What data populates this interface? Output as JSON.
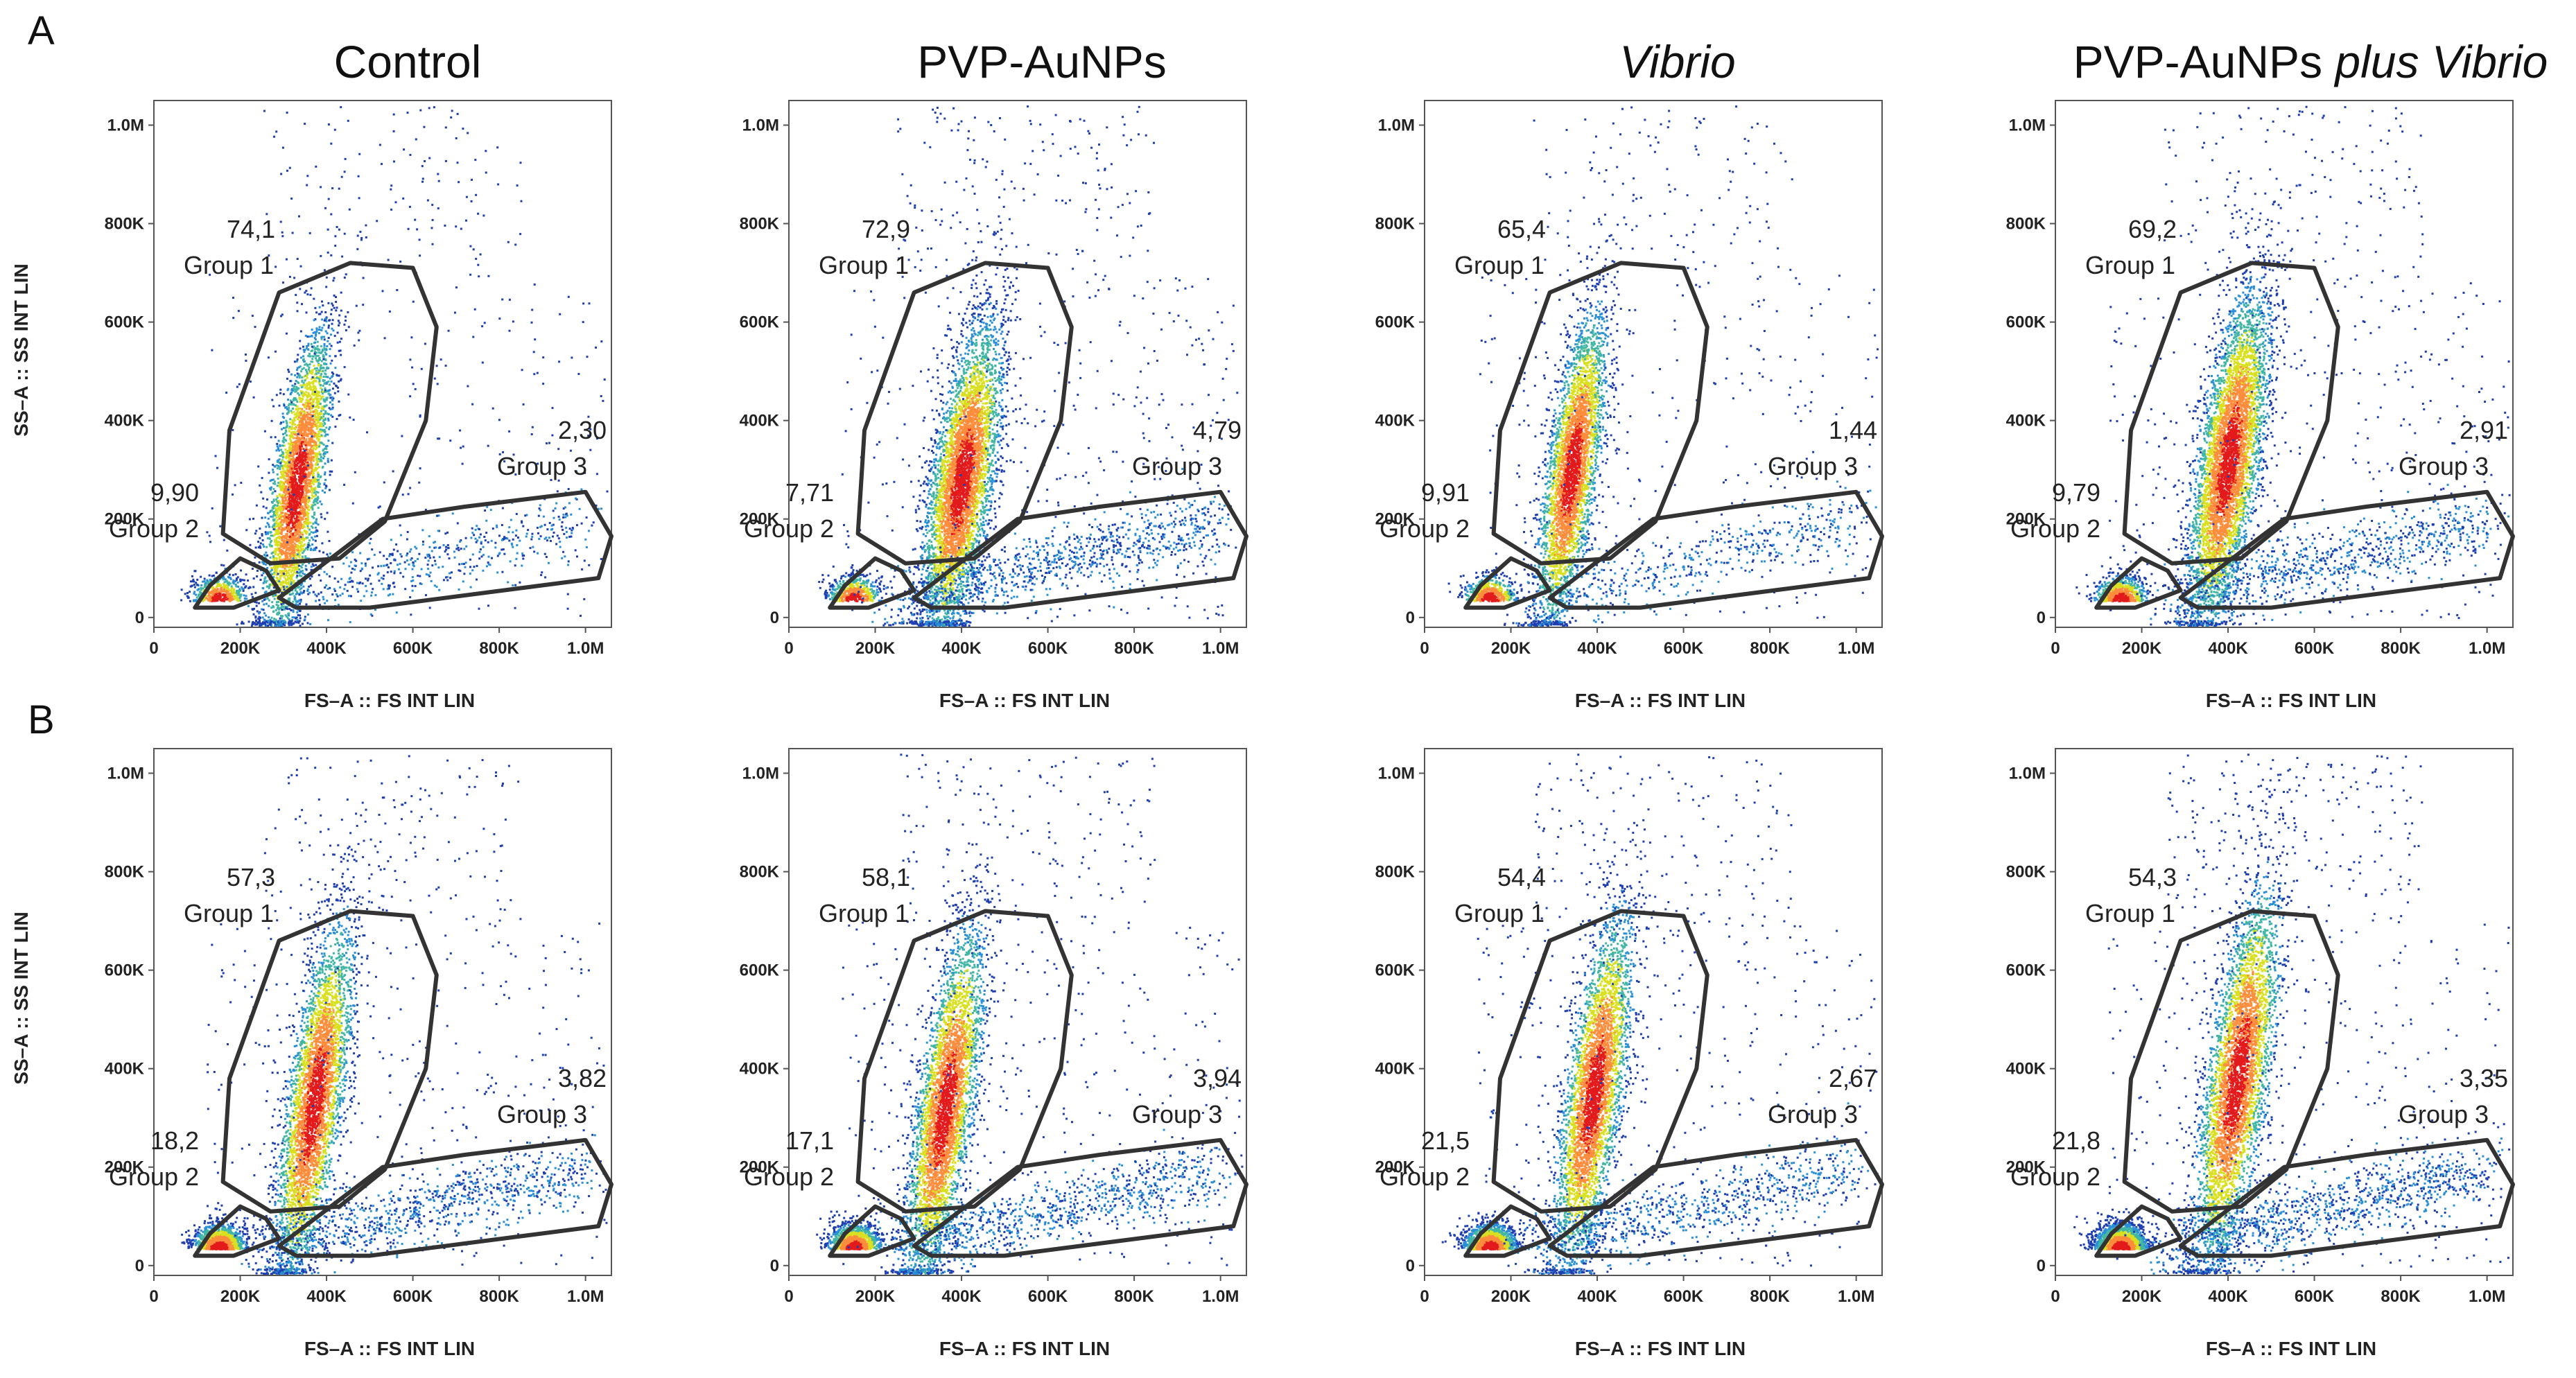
{
  "panel_labels": [
    "A",
    "B"
  ],
  "columns": [
    {
      "parts": [
        {
          "text": "Control",
          "italic": false
        }
      ]
    },
    {
      "parts": [
        {
          "text": "PVP-AuNPs",
          "italic": false
        }
      ]
    },
    {
      "parts": [
        {
          "text": "Vibrio",
          "italic": true
        }
      ]
    },
    {
      "parts": [
        {
          "text": "PVP-AuNPs ",
          "italic": false
        },
        {
          "text": "plus Vibrio",
          "italic": true
        }
      ]
    }
  ],
  "axes": {
    "xlabel": "FS–A :: FS INT LIN",
    "ylabel": "SS–A :: SS INT LIN",
    "x_ticks": [
      {
        "v": 0,
        "t": "0"
      },
      {
        "v": 200000,
        "t": "200K"
      },
      {
        "v": 400000,
        "t": "400K"
      },
      {
        "v": 600000,
        "t": "600K"
      },
      {
        "v": 800000,
        "t": "800K"
      },
      {
        "v": 1000000,
        "t": "1.0M"
      }
    ],
    "y_ticks": [
      {
        "v": 0,
        "t": "0"
      },
      {
        "v": 200000,
        "t": "200K"
      },
      {
        "v": 400000,
        "t": "400K"
      },
      {
        "v": 600000,
        "t": "600K"
      },
      {
        "v": 800000,
        "t": "800K"
      },
      {
        "v": 1000000,
        "t": "1.0M"
      }
    ],
    "xlim": [
      0,
      1060000
    ],
    "ylim": [
      -20000,
      1050000
    ]
  },
  "group_names": [
    "Group 1",
    "Group 2",
    "Group 3"
  ],
  "gates": {
    "group1": [
      [
        270000,
        110000
      ],
      [
        160000,
        170000
      ],
      [
        175000,
        380000
      ],
      [
        290000,
        660000
      ],
      [
        455000,
        720000
      ],
      [
        600000,
        710000
      ],
      [
        655000,
        590000
      ],
      [
        630000,
        400000
      ],
      [
        535000,
        195000
      ],
      [
        430000,
        120000
      ]
    ],
    "group2": [
      [
        95000,
        20000
      ],
      [
        130000,
        65000
      ],
      [
        200000,
        120000
      ],
      [
        260000,
        95000
      ],
      [
        290000,
        55000
      ],
      [
        185000,
        20000
      ]
    ],
    "group3": [
      [
        290000,
        40000
      ],
      [
        530000,
        200000
      ],
      [
        720000,
        225000
      ],
      [
        1000000,
        255000
      ],
      [
        1060000,
        165000
      ],
      [
        1030000,
        80000
      ],
      [
        500000,
        20000
      ],
      [
        330000,
        20000
      ]
    ]
  },
  "chart_data": [
    {
      "type": "scatter",
      "row": "A",
      "title": "Control",
      "xlabel": "FS–A :: FS INT LIN",
      "ylabel": "SS–A :: SS INT LIN",
      "xlim": [
        0,
        1060000
      ],
      "ylim": [
        0,
        1050000
      ],
      "gates": [
        {
          "name": "Group 1",
          "percent": "74,1"
        },
        {
          "name": "Group 2",
          "percent": "9,90"
        },
        {
          "name": "Group 3",
          "percent": "2,30"
        }
      ],
      "density": {
        "main_center": [
          330000,
          270000
        ],
        "main_spread": [
          90000,
          150000
        ],
        "upper_fraction": 0.74,
        "small_fraction": 0.1,
        "diag_fraction": 0.1,
        "n": 5200
      }
    },
    {
      "type": "scatter",
      "row": "A",
      "title": "PVP-AuNPs",
      "xlabel": "FS–A :: FS INT LIN",
      "ylabel": "SS–A :: SS INT LIN",
      "xlim": [
        0,
        1060000
      ],
      "ylim": [
        0,
        1050000
      ],
      "gates": [
        {
          "name": "Group 1",
          "percent": "72,9"
        },
        {
          "name": "Group 2",
          "percent": "7,71"
        },
        {
          "name": "Group 3",
          "percent": "4,79"
        }
      ],
      "density": {
        "main_center": [
          400000,
          280000
        ],
        "main_spread": [
          110000,
          150000
        ],
        "upper_fraction": 0.73,
        "small_fraction": 0.08,
        "diag_fraction": 0.14,
        "n": 7000
      }
    },
    {
      "type": "scatter",
      "row": "A",
      "title": "Vibrio",
      "xlabel": "FS–A :: FS INT LIN",
      "ylabel": "SS–A :: SS INT LIN",
      "xlim": [
        0,
        1060000
      ],
      "ylim": [
        0,
        1050000
      ],
      "gates": [
        {
          "name": "Group 1",
          "percent": "65,4"
        },
        {
          "name": "Group 2",
          "percent": "9,91"
        },
        {
          "name": "Group 3",
          "percent": "1,44"
        }
      ],
      "density": {
        "main_center": [
          340000,
          300000
        ],
        "main_spread": [
          90000,
          150000
        ],
        "upper_fraction": 0.65,
        "small_fraction": 0.1,
        "diag_fraction": 0.1,
        "n": 5200
      }
    },
    {
      "type": "scatter",
      "row": "A",
      "title": "PVP-AuNPs plus Vibrio",
      "xlabel": "FS–A :: FS INT LIN",
      "ylabel": "SS–A :: SS INT LIN",
      "xlim": [
        0,
        1060000
      ],
      "ylim": [
        0,
        1050000
      ],
      "gates": [
        {
          "name": "Group 1",
          "percent": "69,2"
        },
        {
          "name": "Group 2",
          "percent": "9,79"
        },
        {
          "name": "Group 3",
          "percent": "2,91"
        }
      ],
      "density": {
        "main_center": [
          400000,
          320000
        ],
        "main_spread": [
          110000,
          160000
        ],
        "upper_fraction": 0.69,
        "small_fraction": 0.1,
        "diag_fraction": 0.12,
        "n": 7000
      }
    },
    {
      "type": "scatter",
      "row": "B",
      "title": "Control",
      "xlabel": "FS–A :: FS INT LIN",
      "ylabel": "SS–A :: SS INT LIN",
      "xlim": [
        0,
        1060000
      ],
      "ylim": [
        0,
        1050000
      ],
      "gates": [
        {
          "name": "Group 1",
          "percent": "57,3"
        },
        {
          "name": "Group 2",
          "percent": "18,2"
        },
        {
          "name": "Group 3",
          "percent": "3,82"
        }
      ],
      "density": {
        "main_center": [
          370000,
          330000
        ],
        "main_spread": [
          100000,
          170000
        ],
        "upper_fraction": 0.57,
        "small_fraction": 0.18,
        "diag_fraction": 0.14,
        "n": 6500
      }
    },
    {
      "type": "scatter",
      "row": "B",
      "title": "PVP-AuNPs",
      "xlabel": "FS–A :: FS INT LIN",
      "ylabel": "SS–A :: SS INT LIN",
      "xlim": [
        0,
        1060000
      ],
      "ylim": [
        0,
        1050000
      ],
      "gates": [
        {
          "name": "Group 1",
          "percent": "58,1"
        },
        {
          "name": "Group 2",
          "percent": "17,1"
        },
        {
          "name": "Group 3",
          "percent": "3,94"
        }
      ],
      "density": {
        "main_center": [
          360000,
          320000
        ],
        "main_spread": [
          100000,
          170000
        ],
        "upper_fraction": 0.58,
        "small_fraction": 0.17,
        "diag_fraction": 0.14,
        "n": 6500
      }
    },
    {
      "type": "scatter",
      "row": "B",
      "title": "Vibrio",
      "xlabel": "FS–A :: FS INT LIN",
      "ylabel": "SS–A :: SS INT LIN",
      "xlim": [
        0,
        1060000
      ],
      "ylim": [
        0,
        1050000
      ],
      "gates": [
        {
          "name": "Group 1",
          "percent": "54,4"
        },
        {
          "name": "Group 2",
          "percent": "21,5"
        },
        {
          "name": "Group 3",
          "percent": "2,67"
        }
      ],
      "density": {
        "main_center": [
          390000,
          350000
        ],
        "main_spread": [
          100000,
          170000
        ],
        "upper_fraction": 0.54,
        "small_fraction": 0.21,
        "diag_fraction": 0.12,
        "n": 6500
      }
    },
    {
      "type": "scatter",
      "row": "B",
      "title": "PVP-AuNPs plus Vibrio",
      "xlabel": "FS–A :: FS INT LIN",
      "ylabel": "SS–A :: SS INT LIN",
      "xlim": [
        0,
        1060000
      ],
      "ylim": [
        0,
        1050000
      ],
      "gates": [
        {
          "name": "Group 1",
          "percent": "54,3"
        },
        {
          "name": "Group 2",
          "percent": "21,8"
        },
        {
          "name": "Group 3",
          "percent": "3,35"
        }
      ],
      "density": {
        "main_center": [
          420000,
          380000
        ],
        "main_spread": [
          110000,
          180000
        ],
        "upper_fraction": 0.54,
        "small_fraction": 0.22,
        "diag_fraction": 0.14,
        "n": 7500
      }
    }
  ]
}
